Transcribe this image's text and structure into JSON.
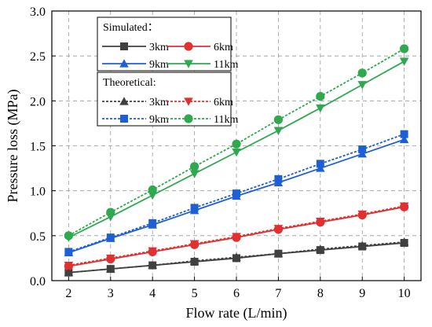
{
  "chart_data": {
    "type": "line",
    "xlabel": "Flow rate (L/min)",
    "ylabel": "Pressure loss (MPa)",
    "xlim": [
      1.6,
      10.4
    ],
    "ylim": [
      0,
      3.0
    ],
    "xticks": [
      2,
      3,
      4,
      5,
      6,
      7,
      8,
      9,
      10
    ],
    "yticks": [
      0.0,
      0.5,
      1.0,
      1.5,
      2.0,
      2.5,
      3.0
    ],
    "ytick_labels": [
      "0.0",
      "0.5",
      "1.0",
      "1.5",
      "2.0",
      "2.5",
      "3.0"
    ],
    "grid": true,
    "legend_placement": "top-left",
    "legend_groups": [
      {
        "title": "Simulated：",
        "series_indices": [
          0,
          1,
          2,
          3
        ]
      },
      {
        "title": "Theoretical:",
        "series_indices": [
          4,
          5,
          6,
          7
        ]
      }
    ],
    "x": [
      2,
      3,
      4,
      5,
      6,
      7,
      8,
      9,
      10
    ],
    "series": [
      {
        "name": "3km",
        "group": "Simulated",
        "color": "#404040",
        "marker": "square",
        "dashed": false,
        "values": [
          0.09,
          0.13,
          0.17,
          0.21,
          0.25,
          0.3,
          0.34,
          0.38,
          0.42
        ]
      },
      {
        "name": "6km",
        "group": "Simulated",
        "color": "#e03030",
        "marker": "circle",
        "dashed": false,
        "values": [
          0.16,
          0.24,
          0.32,
          0.4,
          0.48,
          0.57,
          0.65,
          0.73,
          0.82
        ]
      },
      {
        "name": "9km",
        "group": "Simulated",
        "color": "#1f5fd6",
        "marker": "triangle-up",
        "dashed": false,
        "values": [
          0.31,
          0.47,
          0.62,
          0.78,
          0.94,
          1.09,
          1.25,
          1.41,
          1.57
        ]
      },
      {
        "name": "11km",
        "group": "Simulated",
        "color": "#2fa84f",
        "marker": "triangle-down",
        "dashed": false,
        "values": [
          0.48,
          0.71,
          0.95,
          1.19,
          1.43,
          1.67,
          1.92,
          2.18,
          2.44
        ]
      },
      {
        "name": "3km",
        "group": "Theoretical",
        "color": "#404040",
        "marker": "triangle-up",
        "dashed": true,
        "values": [
          0.09,
          0.13,
          0.17,
          0.22,
          0.26,
          0.3,
          0.35,
          0.39,
          0.43
        ]
      },
      {
        "name": "6km",
        "group": "Theoretical",
        "color": "#e03030",
        "marker": "triangle-down",
        "dashed": true,
        "values": [
          0.17,
          0.25,
          0.33,
          0.41,
          0.49,
          0.58,
          0.66,
          0.74,
          0.83
        ]
      },
      {
        "name": "9km",
        "group": "Theoretical",
        "color": "#1f5fd6",
        "marker": "square",
        "dashed": true,
        "values": [
          0.32,
          0.48,
          0.64,
          0.81,
          0.97,
          1.13,
          1.3,
          1.46,
          1.63
        ]
      },
      {
        "name": "11km",
        "group": "Theoretical",
        "color": "#2fa84f",
        "marker": "circle",
        "dashed": true,
        "values": [
          0.5,
          0.76,
          1.01,
          1.27,
          1.52,
          1.79,
          2.05,
          2.31,
          2.58
        ]
      }
    ]
  }
}
